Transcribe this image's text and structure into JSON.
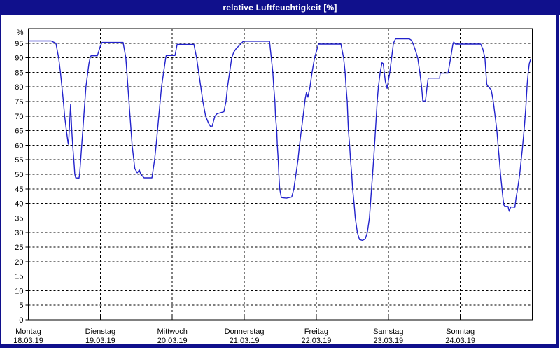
{
  "window": {
    "title": "relative Luftfeuchtigkeit [%]",
    "colors": {
      "chrome": "#10108C",
      "background": "#FFFFFF",
      "title_text": "#FFFFFF",
      "line": "#2222CC",
      "grid": "#000000",
      "axis_text": "#000000"
    }
  },
  "chart_data": {
    "type": "line",
    "title": "relative Luftfeuchtigkeit [%]",
    "ylabel": "%",
    "y_unit_label": "%",
    "ylim": [
      0,
      100
    ],
    "y_ticks": [
      0,
      5,
      10,
      15,
      20,
      25,
      30,
      35,
      40,
      45,
      50,
      55,
      60,
      65,
      70,
      75,
      80,
      85,
      90,
      95
    ],
    "grid": "dashed",
    "legend": "none",
    "x_axis": {
      "unit": "hours since Montag 18.03.19 00:00",
      "range_hours": [
        0,
        168
      ],
      "hours_per_day": 24,
      "day_labels": [
        {
          "name": "Montag",
          "date": "18.03.19"
        },
        {
          "name": "Dienstag",
          "date": "19.03.19"
        },
        {
          "name": "Mittwoch",
          "date": "20.03.19"
        },
        {
          "name": "Donnerstag",
          "date": "21.03.19"
        },
        {
          "name": "Freitag",
          "date": "22.03.19"
        },
        {
          "name": "Samstag",
          "date": "23.03.19"
        },
        {
          "name": "Sonntag",
          "date": "24.03.19"
        }
      ]
    },
    "series": [
      {
        "name": "relative Luftfeuchtigkeit",
        "color": "#2222CC",
        "points": [
          [
            0,
            95.8
          ],
          [
            7.6,
            95.8
          ],
          [
            9.2,
            95
          ],
          [
            10.1,
            90
          ],
          [
            10.7,
            85
          ],
          [
            11.2,
            80
          ],
          [
            11.7,
            75
          ],
          [
            12.1,
            70
          ],
          [
            12.7,
            65
          ],
          [
            13.2,
            61
          ],
          [
            13.4,
            60.3
          ],
          [
            14.1,
            74
          ],
          [
            14.5,
            65
          ],
          [
            14.8,
            60
          ],
          [
            15.3,
            53
          ],
          [
            15.5,
            50
          ],
          [
            15.8,
            48.8
          ],
          [
            16.9,
            48.7
          ],
          [
            17.1,
            50
          ],
          [
            17.8,
            60
          ],
          [
            18.5,
            70
          ],
          [
            19.2,
            80
          ],
          [
            20.2,
            88
          ],
          [
            20.6,
            90
          ],
          [
            20.9,
            90.7
          ],
          [
            23.0,
            90.7
          ],
          [
            23.4,
            92
          ],
          [
            24.0,
            94
          ],
          [
            24.6,
            95.3
          ],
          [
            31.6,
            95.3
          ],
          [
            32.5,
            90
          ],
          [
            33.2,
            80
          ],
          [
            33.9,
            70
          ],
          [
            34.6,
            60
          ],
          [
            35.5,
            52
          ],
          [
            36.3,
            50.5
          ],
          [
            37.0,
            51.5
          ],
          [
            37.5,
            50
          ],
          [
            38.6,
            48.8
          ],
          [
            41.2,
            48.8
          ],
          [
            42.1,
            55
          ],
          [
            42.6,
            60
          ],
          [
            43.5,
            70
          ],
          [
            44.4,
            80
          ],
          [
            45.1,
            85
          ],
          [
            45.8,
            90
          ],
          [
            46.0,
            90.8
          ],
          [
            48.9,
            90.8
          ],
          [
            49.6,
            94.6
          ],
          [
            55.2,
            94.6
          ],
          [
            56.1,
            90
          ],
          [
            56.8,
            85
          ],
          [
            57.5,
            80
          ],
          [
            58.2,
            75
          ],
          [
            59.1,
            70
          ],
          [
            60.1,
            67.5
          ],
          [
            60.8,
            66.3
          ],
          [
            61.2,
            66.3
          ],
          [
            62.2,
            70
          ],
          [
            62.9,
            70.8
          ],
          [
            65.2,
            71.5
          ],
          [
            65.9,
            75
          ],
          [
            66.4,
            80
          ],
          [
            67.1,
            85
          ],
          [
            67.8,
            90
          ],
          [
            68.5,
            92
          ],
          [
            69.4,
            93.3
          ],
          [
            70.4,
            94.3
          ],
          [
            71.5,
            95.5
          ],
          [
            72.0,
            95.7
          ],
          [
            80.4,
            95.7
          ],
          [
            81.0,
            90
          ],
          [
            81.5,
            85
          ],
          [
            81.8,
            80
          ],
          [
            82.2,
            75
          ],
          [
            82.4,
            70
          ],
          [
            82.8,
            65
          ],
          [
            83.0,
            60
          ],
          [
            83.3,
            55
          ],
          [
            83.5,
            50
          ],
          [
            83.8,
            45
          ],
          [
            84.3,
            42.2
          ],
          [
            84.5,
            42
          ],
          [
            86.0,
            41.8
          ],
          [
            87.8,
            42.2
          ],
          [
            88.5,
            45
          ],
          [
            89.2,
            50
          ],
          [
            89.9,
            55
          ],
          [
            90.4,
            60
          ],
          [
            91.0,
            65
          ],
          [
            91.6,
            70
          ],
          [
            92.3,
            76
          ],
          [
            92.7,
            78
          ],
          [
            93.2,
            76.5
          ],
          [
            93.9,
            80
          ],
          [
            94.6,
            85
          ],
          [
            95.4,
            90
          ],
          [
            96.0,
            92
          ],
          [
            96.7,
            94.7
          ],
          [
            104.2,
            94.7
          ],
          [
            105.1,
            90
          ],
          [
            105.6,
            85
          ],
          [
            105.9,
            80
          ],
          [
            106.3,
            75
          ],
          [
            106.5,
            70
          ],
          [
            106.7,
            65
          ],
          [
            107.1,
            60
          ],
          [
            107.4,
            55
          ],
          [
            107.8,
            50
          ],
          [
            108.1,
            45
          ],
          [
            108.6,
            40
          ],
          [
            109.0,
            35
          ],
          [
            109.7,
            30
          ],
          [
            110.4,
            27.6
          ],
          [
            111.4,
            27.3
          ],
          [
            112.3,
            27.8
          ],
          [
            113.0,
            30
          ],
          [
            113.7,
            35
          ],
          [
            114.4,
            45
          ],
          [
            115.1,
            55
          ],
          [
            115.7,
            65
          ],
          [
            116.3,
            75
          ],
          [
            116.7,
            80
          ],
          [
            117.3,
            85
          ],
          [
            117.9,
            88.3
          ],
          [
            118.3,
            88
          ],
          [
            119.0,
            82
          ],
          [
            119.6,
            79.5
          ],
          [
            120.5,
            85
          ],
          [
            121.1,
            90
          ],
          [
            121.7,
            95
          ],
          [
            122.4,
            96.5
          ],
          [
            127.0,
            96.5
          ],
          [
            127.7,
            96
          ],
          [
            128.2,
            95
          ],
          [
            128.9,
            93
          ],
          [
            129.8,
            90
          ],
          [
            130.5,
            85
          ],
          [
            131.1,
            80
          ],
          [
            131.5,
            75.2
          ],
          [
            132.4,
            75.2
          ],
          [
            132.9,
            80
          ],
          [
            133.3,
            83
          ],
          [
            137.1,
            83
          ],
          [
            137.3,
            84.7
          ],
          [
            139.9,
            84.7
          ],
          [
            140.8,
            90
          ],
          [
            141.5,
            94.5
          ],
          [
            141.8,
            95.4
          ],
          [
            142.4,
            94.7
          ],
          [
            144.0,
            94.7
          ],
          [
            150.8,
            94.7
          ],
          [
            151.5,
            93
          ],
          [
            152.2,
            90
          ],
          [
            152.8,
            81
          ],
          [
            153.0,
            80.5
          ],
          [
            154.3,
            79
          ],
          [
            155.0,
            75
          ],
          [
            155.6,
            70
          ],
          [
            156.2,
            65
          ],
          [
            156.6,
            60
          ],
          [
            157.0,
            55
          ],
          [
            157.4,
            50
          ],
          [
            157.9,
            45
          ],
          [
            158.2,
            42
          ],
          [
            158.5,
            39.5
          ],
          [
            158.9,
            39
          ],
          [
            159.9,
            39
          ],
          [
            160.3,
            37.3
          ],
          [
            160.8,
            38.8
          ],
          [
            162.2,
            38.7
          ],
          [
            162.6,
            42
          ],
          [
            163.1,
            45
          ],
          [
            163.8,
            50
          ],
          [
            164.7,
            59
          ],
          [
            165.4,
            67
          ],
          [
            165.9,
            74
          ],
          [
            166.3,
            81
          ],
          [
            166.7,
            85.5
          ],
          [
            167.0,
            88
          ],
          [
            167.4,
            89.3
          ]
        ]
      }
    ]
  }
}
